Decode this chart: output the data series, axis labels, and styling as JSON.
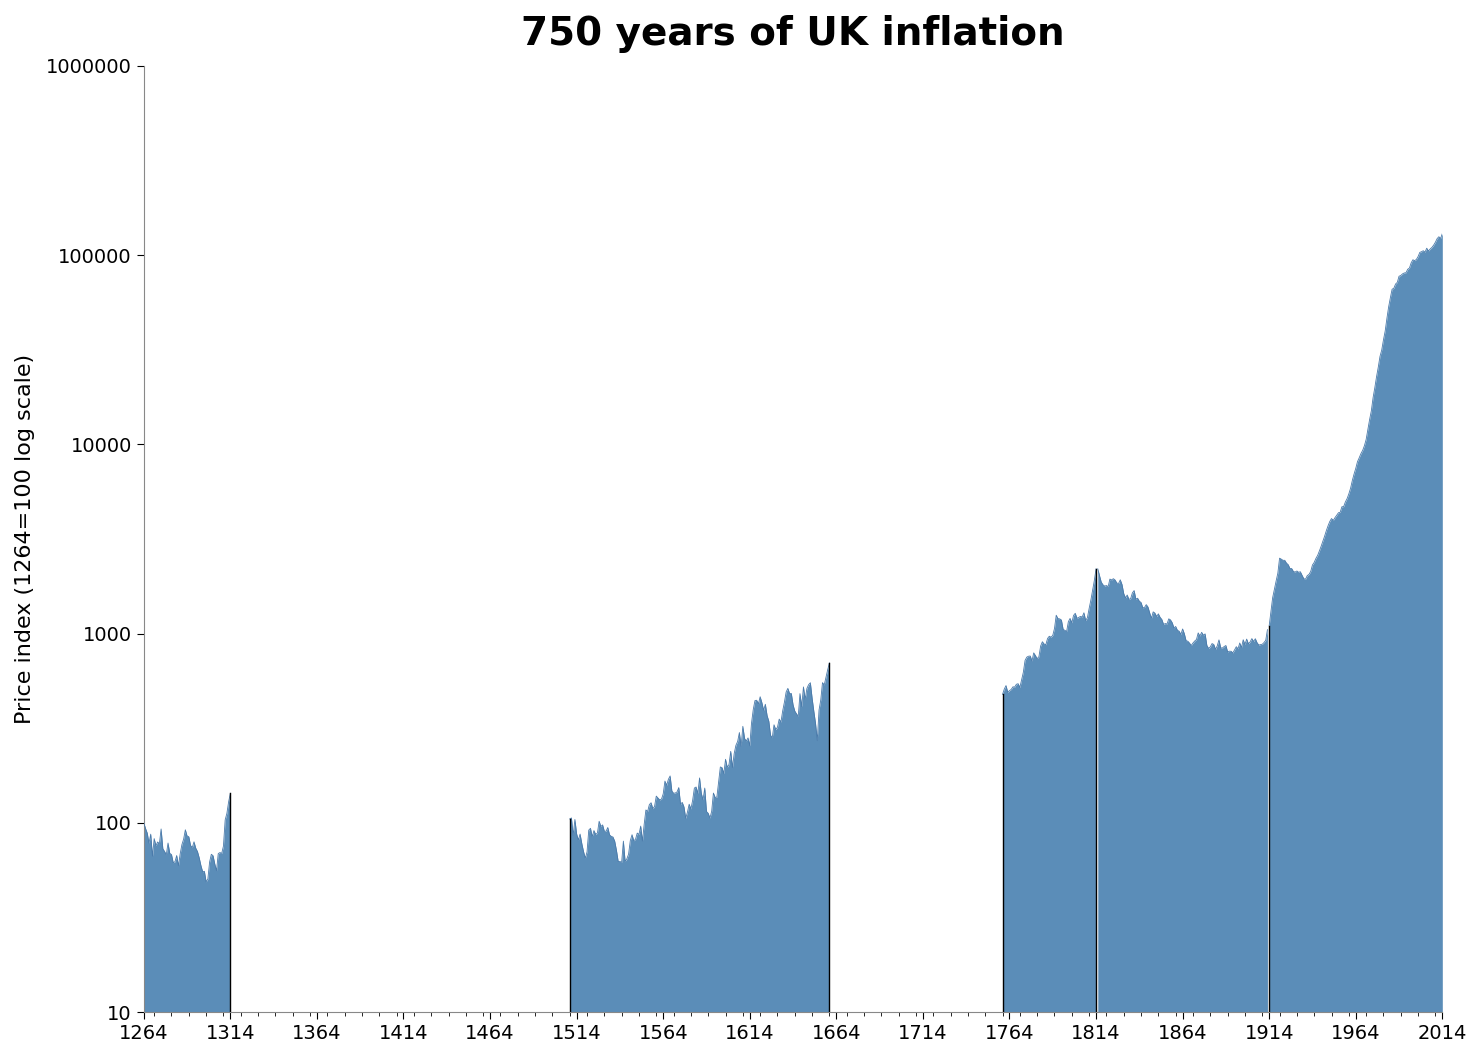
{
  "title": "750 years of UK inflation",
  "ylabel": "Price index (1264=100 log scale)",
  "fill_color": "#5b8db8",
  "line_color": "#4a7aaa",
  "background_color": "#ffffff",
  "title_fontsize": 28,
  "ylabel_fontsize": 16,
  "tick_fontsize": 14,
  "xlim": [
    1264,
    2014
  ],
  "ylim": [
    10,
    1000000
  ],
  "xticks": [
    1264,
    1314,
    1364,
    1414,
    1464,
    1514,
    1564,
    1614,
    1664,
    1714,
    1764,
    1814,
    1864,
    1914,
    1964,
    2014
  ],
  "ytick_values": [
    10,
    100,
    1000,
    10000,
    100000,
    1000000
  ],
  "ytick_labels": [
    "10",
    "100",
    "1000",
    "10000",
    "100000",
    "1000000"
  ]
}
